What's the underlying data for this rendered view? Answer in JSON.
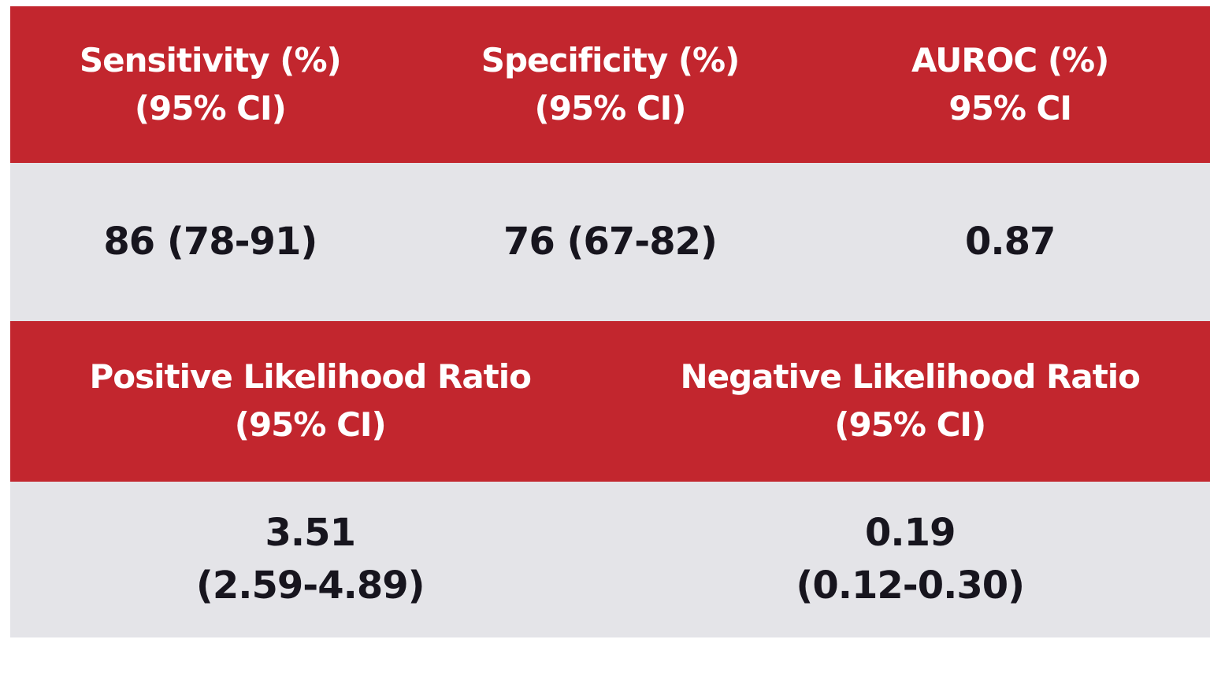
{
  "colors": {
    "accent_red": "#c2262e",
    "row_gray": "#e4e4e8",
    "header_text": "#ffffff",
    "value_text": "#17151e",
    "page_bg": "#ffffff"
  },
  "metrics_table": {
    "headers": [
      {
        "line1": "Sensitivity (%)",
        "line2": "(95% CI)"
      },
      {
        "line1": "Specificity (%)",
        "line2": "(95% CI)"
      },
      {
        "line1": "AUROC (%)",
        "line2": "95% CI"
      }
    ],
    "values": [
      "86 (78-91)",
      "76 (67-82)",
      "0.87"
    ]
  },
  "ratio_table": {
    "headers": [
      {
        "line1": "Positive Likelihood Ratio",
        "line2": "(95% CI)"
      },
      {
        "line1": "Negative Likelihood Ratio",
        "line2": "(95% CI)"
      }
    ],
    "values": [
      {
        "line1": "3.51",
        "line2": "(2.59-4.89)"
      },
      {
        "line1": "0.19",
        "line2": "(0.12-0.30)"
      }
    ]
  },
  "chart_data": [
    {
      "type": "table",
      "columns": [
        "Sensitivity (%) (95% CI)",
        "Specificity (%) (95% CI)",
        "AUROC (%) 95% CI"
      ],
      "rows": [
        [
          "86 (78-91)",
          "76 (67-82)",
          "0.87"
        ]
      ]
    },
    {
      "type": "table",
      "columns": [
        "Positive Likelihood Ratio (95% CI)",
        "Negative Likelihood Ratio (95% CI)"
      ],
      "rows": [
        [
          "3.51 (2.59-4.89)",
          "0.19 (0.12-0.30)"
        ]
      ]
    }
  ]
}
